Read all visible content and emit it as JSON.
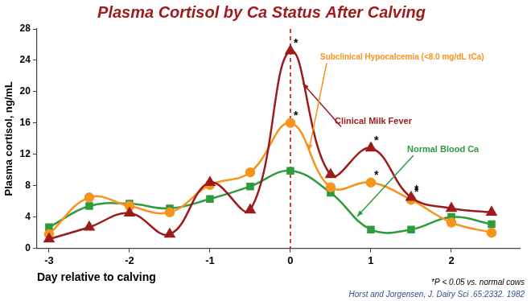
{
  "chart_data": {
    "type": "line",
    "title": "Plasma Cortisol by Ca Status After Calving",
    "x_label": "Day relative to calving",
    "y_label": "Plasma cortisol, ng/mL",
    "x": [
      -3,
      -2.5,
      -2,
      -1.5,
      -1,
      -0.5,
      0,
      0.5,
      1,
      1.5,
      2,
      2.5
    ],
    "series": [
      {
        "name": "Clinical Milk Fever",
        "color": "#9c1b1b",
        "marker": "triangle",
        "line_style": "smooth",
        "values": [
          1.2,
          2.7,
          4.5,
          1.8,
          8.4,
          4.9,
          25.2,
          9.4,
          12.8,
          6.5,
          5.1,
          4.6
        ]
      },
      {
        "name": "Subclinical Hypocalcemia (<8.0 mg/dL tCa)",
        "color": "#f7941d",
        "marker": "circle",
        "line_style": "smooth",
        "values": [
          1.8,
          6.5,
          5.4,
          4.6,
          8.1,
          9.7,
          16.0,
          7.8,
          8.4,
          6.2,
          3.3,
          2.0
        ]
      },
      {
        "name": "Normal Blood Ca",
        "color": "#2e9b3e",
        "marker": "square",
        "line_style": "smooth",
        "values": [
          2.7,
          5.4,
          5.7,
          5.1,
          6.3,
          7.9,
          9.9,
          7.1,
          2.4,
          2.4,
          4.0,
          3.1
        ]
      }
    ],
    "xlim": [
      -3.15,
      2.85
    ],
    "xticks": [
      -3,
      -2,
      -1,
      0,
      1,
      2
    ],
    "ylim": [
      0,
      28
    ],
    "yticks": [
      0,
      4,
      8,
      12,
      16,
      20,
      24,
      28
    ],
    "grid": false,
    "vline": {
      "x": 0,
      "color": "#c00000",
      "line_style": "dashed"
    },
    "significance_marks": [
      {
        "text": "*",
        "series": "Clinical Milk Fever",
        "x": 0
      },
      {
        "text": "*",
        "series": "Subclinical Hypocalcemia (<8.0 mg/dL tCa)",
        "x": 0
      },
      {
        "text": "*",
        "series": "Clinical Milk Fever",
        "x": 1
      },
      {
        "text": "*",
        "series": "Subclinical Hypocalcemia (<8.0 mg/dL tCa)",
        "x": 1
      },
      {
        "text": "*",
        "series": "Clinical Milk Fever",
        "x": 1.5
      },
      {
        "text": "*",
        "series": "Subclinical Hypocalcemia (<8.0 mg/dL tCa)",
        "x": 1.5
      }
    ],
    "footnote": "*P < 0.05 vs. normal cows",
    "source": "Horst and Jorgensen, J. Dairy Sci .65:2332. 1982"
  }
}
